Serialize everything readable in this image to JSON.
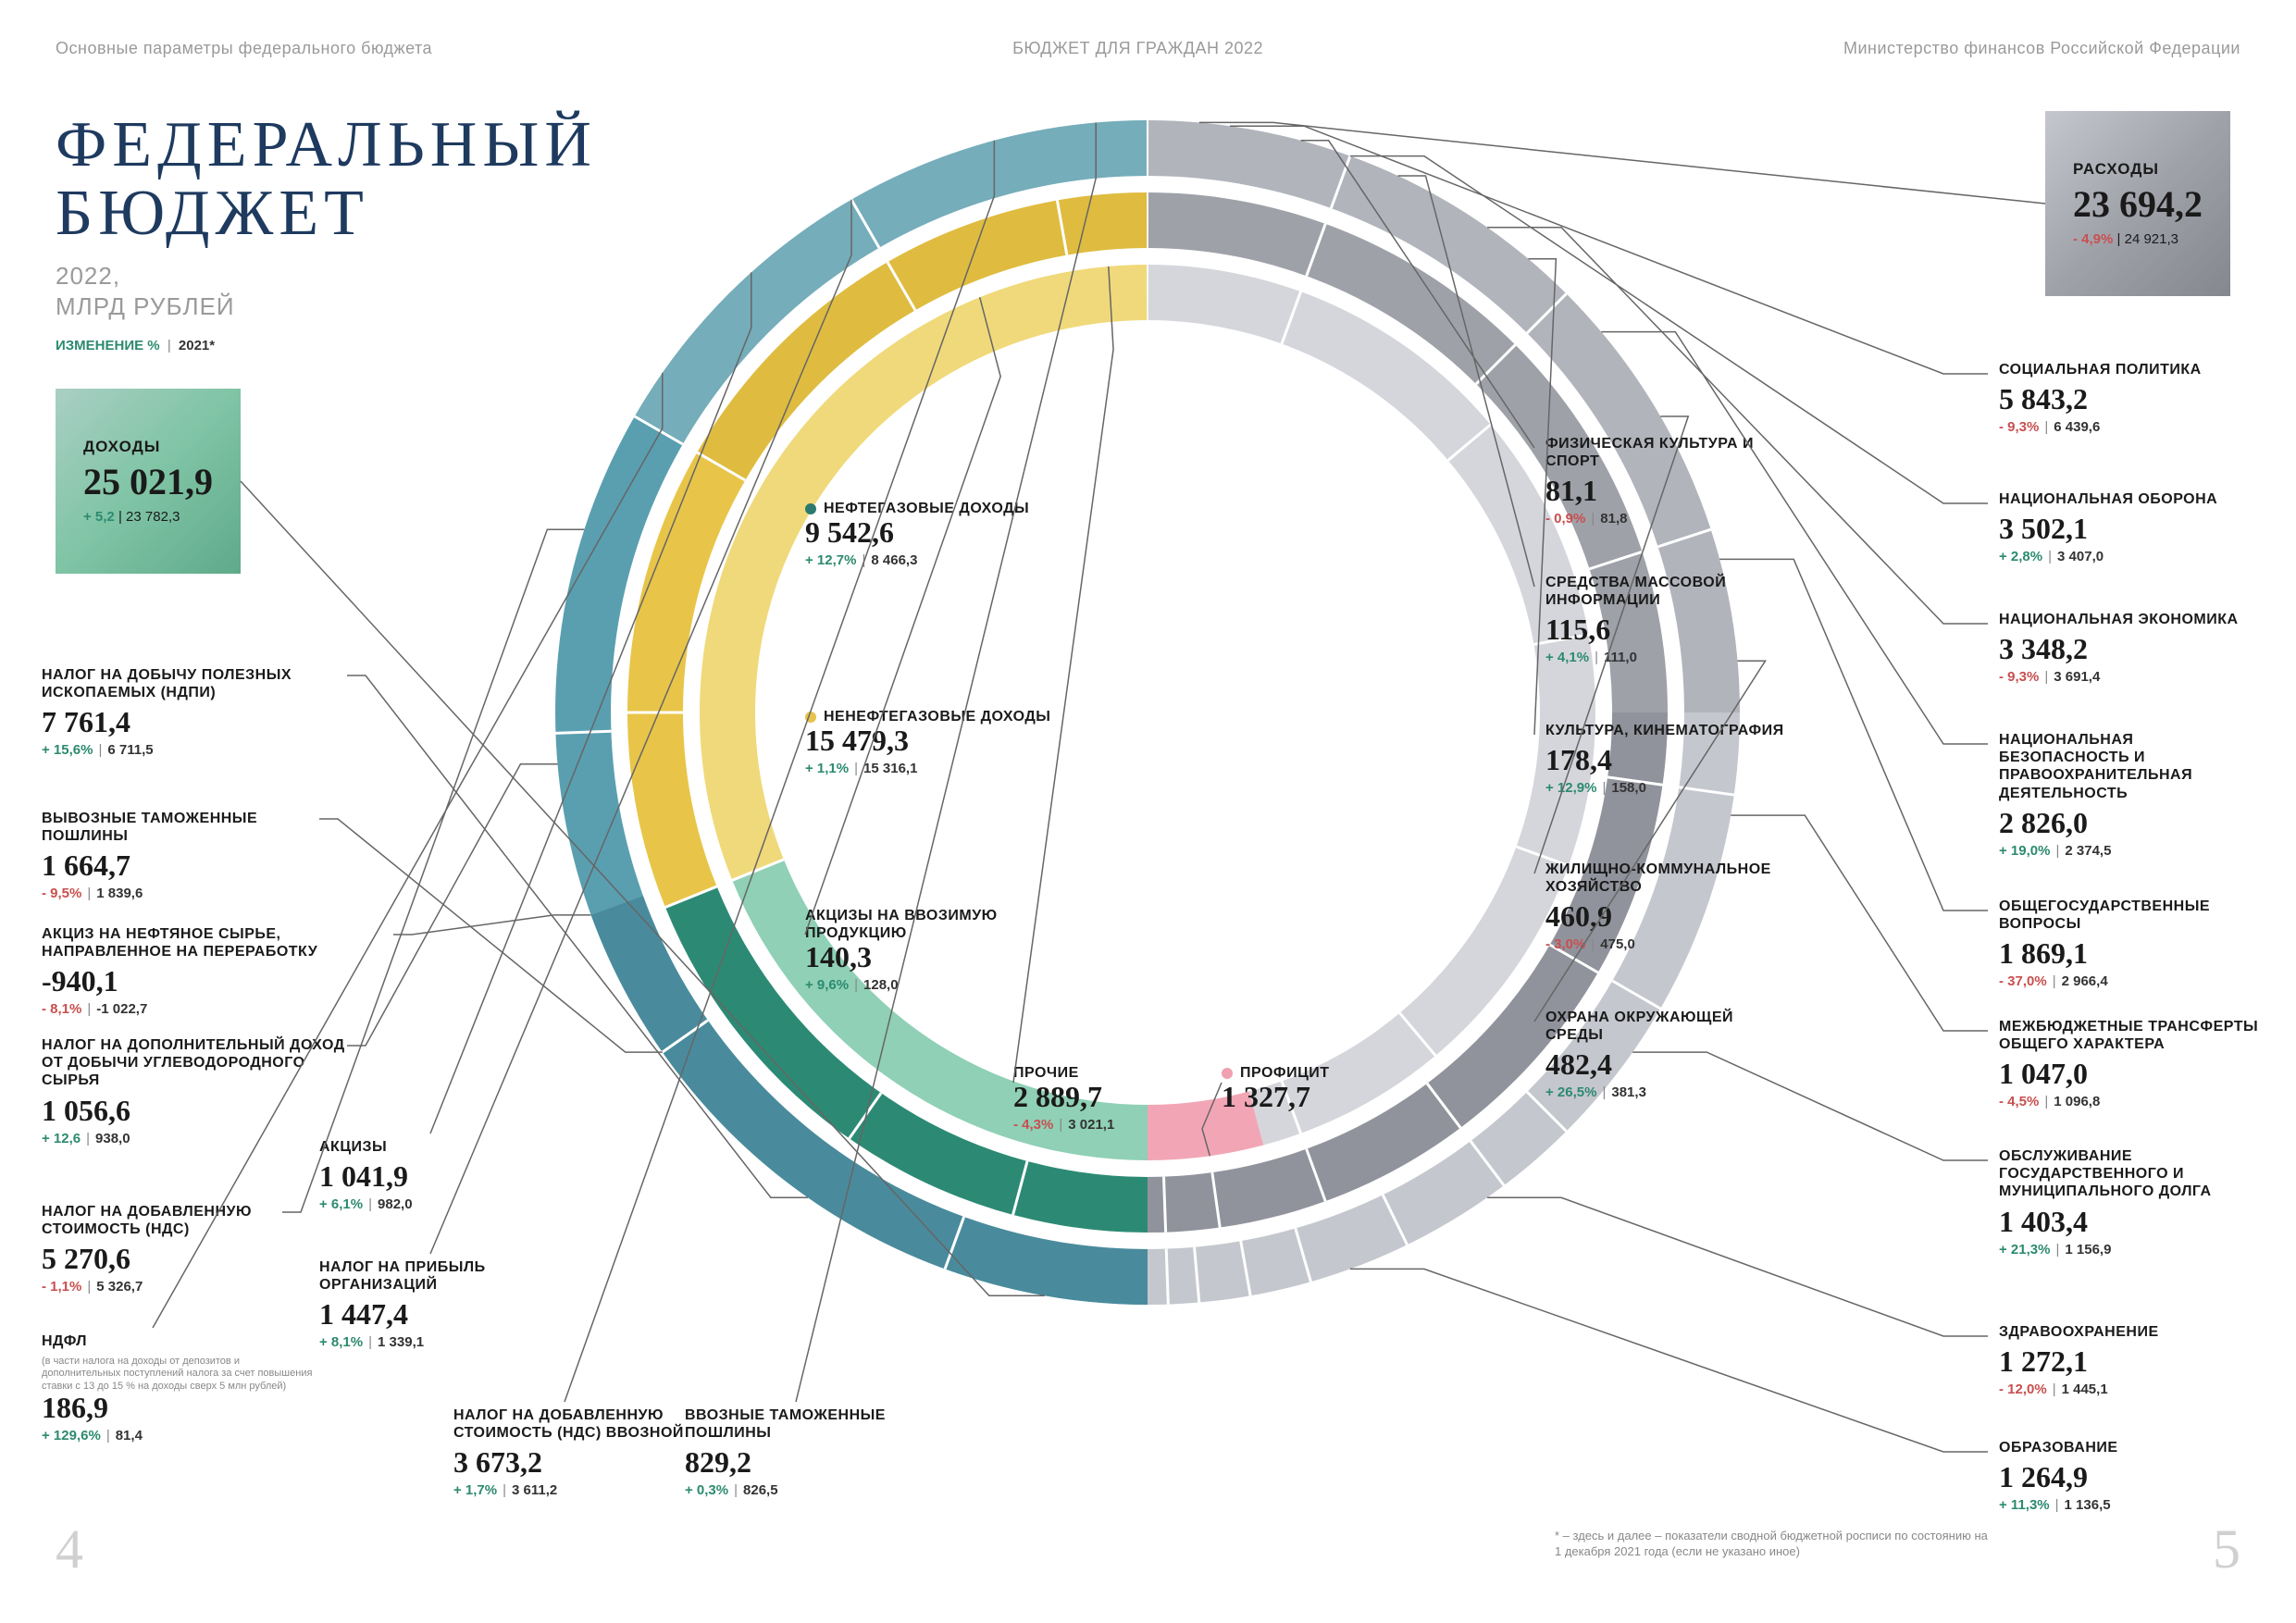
{
  "header": {
    "left": "Основные параметры федерального бюджета",
    "center": "БЮДЖЕТ ДЛЯ ГРАЖДАН 2022",
    "right": "Министерство финансов Российской Федерации"
  },
  "title": {
    "line1": "ФЕДЕРАЛЬНЫЙ",
    "line2": "БЮДЖЕТ",
    "year_line1": "2022,",
    "year_line2": "МЛРД РУБЛЕЙ",
    "legend_change": "ИЗМЕНЕНИЕ %",
    "legend_prev": "2021*"
  },
  "totals": {
    "income": {
      "label": "ДОХОДЫ",
      "value": "25 021,9",
      "pct": "+ 5,2",
      "prev": "23 782,3"
    },
    "expense": {
      "label": "РАСХОДЫ",
      "value": "23 694,2",
      "pct": "- 4,9%",
      "prev": "24 921,3"
    }
  },
  "inner": {
    "oil": {
      "label": "НЕФТЕГАЗОВЫЕ ДОХОДЫ",
      "value": "9 542,6",
      "pct": "+ 12,7%",
      "prev": "8 466,3",
      "dot": "#2c7a6f"
    },
    "nonoil": {
      "label": "НЕНЕФТЕГАЗОВЫЕ ДОХОДЫ",
      "value": "15 479,3",
      "pct": "+ 1,1%",
      "prev": "15 316,1",
      "dot": "#e6c34b"
    },
    "excise": {
      "label": "АКЦИЗЫ НА ВВОЗИМУЮ ПРОДУКЦИЮ",
      "value": "140,3",
      "pct": "+ 9,6%",
      "prev": "128,0"
    },
    "other": {
      "label": "ПРОЧИЕ",
      "value": "2 889,7",
      "pct": "- 4,3%",
      "prev": "3 021,1"
    },
    "surplus": {
      "label": "ПРОФИЦИТ",
      "value": "1 327,7",
      "dot": "#f0a0b0"
    }
  },
  "revenues": [
    {
      "label": "НАЛОГ НА ДОБЫЧУ ПОЛЕЗНЫХ ИСКОПАЕМЫХ (НДПИ)",
      "value": "7 761,4",
      "pct": "+ 15,6%",
      "pct_sign": "pos",
      "prev": "6 711,5"
    },
    {
      "label": "ВЫВОЗНЫЕ ТАМОЖЕННЫЕ ПОШЛИНЫ",
      "value": "1 664,7",
      "pct": "- 9,5%",
      "pct_sign": "neg",
      "prev": "1 839,6"
    },
    {
      "label": "АКЦИЗ НА НЕФТЯНОЕ СЫРЬЕ, НАПРАВЛЕННОЕ НА ПЕРЕРАБОТКУ",
      "value": "-940,1",
      "pct": "- 8,1%",
      "pct_sign": "neg",
      "prev": "-1 022,7"
    },
    {
      "label": "НАЛОГ НА ДОПОЛНИТЕЛЬНЫЙ ДОХОД ОТ ДОБЫЧИ УГЛЕВОДОРОДНОГО СЫРЬЯ",
      "value": "1 056,6",
      "pct": "+ 12,6",
      "pct_sign": "pos",
      "prev": "938,0"
    },
    {
      "label": "НАЛОГ НА ДОБАВЛЕННУЮ СТОИМОСТЬ (НДС)",
      "value": "5 270,6",
      "pct": "- 1,1%",
      "pct_sign": "neg",
      "prev": "5 326,7"
    },
    {
      "label": "НДФЛ",
      "footnote": "(в части налога на доходы от депозитов и дополнительных поступлений налога за счет повышения ставки с 13 до 15 % на доходы сверх 5 млн рублей)",
      "value": "186,9",
      "pct": "+ 129,6%",
      "pct_sign": "pos",
      "prev": "81,4"
    },
    {
      "label": "АКЦИЗЫ",
      "value": "1 041,9",
      "pct": "+ 6,1%",
      "pct_sign": "pos",
      "prev": "982,0"
    },
    {
      "label": "НАЛОГ НА ПРИБЫЛЬ ОРГАНИЗАЦИЙ",
      "value": "1 447,4",
      "pct": "+ 8,1%",
      "pct_sign": "pos",
      "prev": "1 339,1"
    },
    {
      "label": "НАЛОГ НА ДОБАВЛЕННУЮ СТОИМОСТЬ (НДС) ВВОЗНОЙ",
      "value": "3 673,2",
      "pct": "+ 1,7%",
      "pct_sign": "pos",
      "prev": "3 611,2"
    },
    {
      "label": "ВВОЗНЫЕ ТАМОЖЕННЫЕ ПОШЛИНЫ",
      "value": "829,2",
      "pct": "+ 0,3%",
      "pct_sign": "pos",
      "prev": "826,5"
    }
  ],
  "expenses_center": [
    {
      "label": "ФИЗИЧЕСКАЯ КУЛЬТУРА И СПОРТ",
      "value": "81,1",
      "pct": "- 0,9%",
      "pct_sign": "neg",
      "prev": "81,8"
    },
    {
      "label": "СРЕДСТВА МАССОВОЙ ИНФОРМАЦИИ",
      "value": "115,6",
      "pct": "+ 4,1%",
      "pct_sign": "pos",
      "prev": "111,0"
    },
    {
      "label": "КУЛЬТУРА, КИНЕМАТОГРАФИЯ",
      "value": "178,4",
      "pct": "+ 12,9%",
      "pct_sign": "pos",
      "prev": "158,0"
    },
    {
      "label": "ЖИЛИЩНО-КОММУНАЛЬНОЕ ХОЗЯЙСТВО",
      "value": "460,9",
      "pct": "- 3,0%",
      "pct_sign": "neg",
      "prev": "475,0"
    },
    {
      "label": "ОХРАНА ОКРУЖАЮЩЕЙ СРЕДЫ",
      "value": "482,4",
      "pct": "+ 26,5%",
      "pct_sign": "pos",
      "prev": "381,3"
    }
  ],
  "expenses_right": [
    {
      "label": "СОЦИАЛЬНАЯ ПОЛИТИКА",
      "value": "5 843,2",
      "pct": "- 9,3%",
      "pct_sign": "neg",
      "prev": "6 439,6"
    },
    {
      "label": "НАЦИОНАЛЬНАЯ ОБОРОНА",
      "value": "3 502,1",
      "pct": "+ 2,8%",
      "pct_sign": "pos",
      "prev": "3 407,0"
    },
    {
      "label": "НАЦИОНАЛЬНАЯ ЭКОНОМИКА",
      "value": "3 348,2",
      "pct": "- 9,3%",
      "pct_sign": "neg",
      "prev": "3 691,4"
    },
    {
      "label": "НАЦИОНАЛЬНАЯ БЕЗОПАСНОСТЬ И ПРАВООХРАНИТЕЛЬНАЯ ДЕЯТЕЛЬНОСТЬ",
      "value": "2 826,0",
      "pct": "+ 19,0%",
      "pct_sign": "pos",
      "prev": "2 374,5"
    },
    {
      "label": "ОБЩЕГОСУДАРСТВЕННЫЕ ВОПРОСЫ",
      "value": "1 869,1",
      "pct": "- 37,0%",
      "pct_sign": "neg",
      "prev": "2 966,4"
    },
    {
      "label": "МЕЖБЮДЖЕТНЫЕ ТРАНСФЕРТЫ ОБЩЕГО ХАРАКТЕРА",
      "value": "1 047,0",
      "pct": "- 4,5%",
      "pct_sign": "neg",
      "prev": "1 096,8"
    },
    {
      "label": "ОБСЛУЖИВАНИЕ ГОСУДАРСТВЕННОГО И МУНИЦИПАЛЬНОГО ДОЛГА",
      "value": "1 403,4",
      "pct": "+ 21,3%",
      "pct_sign": "pos",
      "prev": "1 156,9"
    },
    {
      "label": "ЗДРАВООХРАНЕНИЕ",
      "value": "1 272,1",
      "pct": "- 12,0%",
      "pct_sign": "neg",
      "prev": "1 445,1"
    },
    {
      "label": "ОБРАЗОВАНИЕ",
      "value": "1 264,9",
      "pct": "+ 11,3%",
      "pct_sign": "pos",
      "prev": "1 136,5"
    }
  ],
  "rings": {
    "comment": "Outer=incomes half-left teal + expenses half-right grey; middle=oil(green)/non-oil(yellow) vs grey; inner similar",
    "bandwidth_outer": 60,
    "bandwidth_middle": 60,
    "bandwidth_inner": 60,
    "gap": 18,
    "r_outer": 640,
    "colors": {
      "income_outer_a": "#5a9fb0",
      "income_outer_b": "#3d7a8d",
      "oil_green": "#2c8a74",
      "light_green": "#8fd0b6",
      "yellow_a": "#e8c549",
      "yellow_b": "#d9b53a",
      "grey_a": "#9fa1a9",
      "grey_b": "#7e808a",
      "light_grey": "#c5c7ce",
      "pink": "#f2a6b5"
    },
    "income_breaks_deg": [
      180,
      225,
      260,
      290,
      330,
      360,
      20,
      60,
      95,
      125,
      150,
      178
    ],
    "expense_breaks_deg": [
      0,
      45,
      72,
      98,
      120,
      135,
      143,
      154,
      164,
      170,
      175,
      178,
      180
    ]
  },
  "footnote": "* – здесь и далее – показатели сводной бюджетной росписи по состоянию на 1 декабря 2021 года (если не указано иное)",
  "pagenum_left": "4",
  "pagenum_right": "5"
}
